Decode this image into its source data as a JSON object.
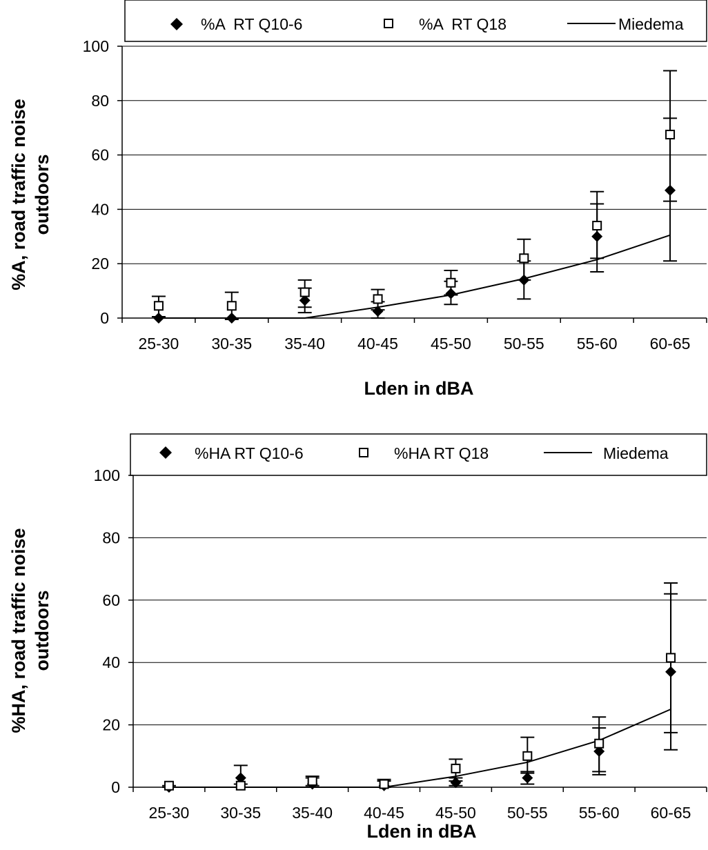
{
  "colors": {
    "background": "#ffffff",
    "ink": "#000000"
  },
  "chart_data": [
    {
      "type": "line",
      "xlabel": "Lden in dBA",
      "ylabel_line1": "%A, road traffic noise",
      "ylabel_line2": "outdoors",
      "ylim": [
        0,
        100
      ],
      "yticks": [
        "0",
        "20",
        "40",
        "60",
        "80",
        "100"
      ],
      "categories": [
        "25-30",
        "30-35",
        "35-40",
        "40-45",
        "45-50",
        "50-55",
        "55-60",
        "60-65"
      ],
      "legend_position": "top",
      "grid": "horizontal",
      "series": [
        {
          "name": "%A  RT Q10-6",
          "marker": "filled-diamond",
          "values": [
            0,
            0,
            6.5,
            2.5,
            9,
            14,
            30,
            47
          ],
          "err_low": [
            0,
            0,
            2,
            0,
            5,
            7,
            17,
            21
          ],
          "err_high": [
            0,
            0,
            11,
            6,
            13.5,
            21,
            42,
            73.5
          ]
        },
        {
          "name": "%A  RT Q18",
          "marker": "open-square",
          "values": [
            4.5,
            4.5,
            9.5,
            7,
            13,
            22,
            34,
            67.5
          ],
          "err_low": [
            0.5,
            -0.5,
            4,
            3,
            8.5,
            14,
            22,
            43
          ],
          "err_high": [
            8,
            9.5,
            14,
            10.5,
            17.5,
            29,
            46.5,
            91
          ]
        },
        {
          "name": "Miedema",
          "marker": "line",
          "values": [
            0,
            0,
            0,
            4,
            8.5,
            14.5,
            21.5,
            30.5
          ]
        }
      ]
    },
    {
      "type": "line",
      "xlabel": "Lden in dBA",
      "ylabel_line1": "%HA, road traffic noise",
      "ylabel_line2": "outdoors",
      "ylim": [
        0,
        100
      ],
      "yticks": [
        "0",
        "20",
        "40",
        "60",
        "80",
        "100"
      ],
      "categories": [
        "25-30",
        "30-35",
        "35-40",
        "40-45",
        "45-50",
        "50-55",
        "55-60",
        "60-65"
      ],
      "legend_position": "top",
      "grid": "horizontal",
      "series": [
        {
          "name": "%HA RT Q10-6",
          "marker": "filled-diamond",
          "values": [
            0,
            3,
            1,
            0.5,
            1.5,
            3,
            11.5,
            37
          ],
          "err_low": [
            0,
            0,
            0,
            0,
            0.5,
            1,
            4,
            12
          ],
          "err_high": [
            0,
            7,
            3,
            2,
            3,
            5,
            19,
            62
          ]
        },
        {
          "name": "%HA RT Q18",
          "marker": "open-square",
          "values": [
            0.5,
            0.5,
            2,
            1,
            6,
            10,
            14,
            41.5
          ],
          "err_low": [
            0,
            0,
            0.5,
            0,
            2,
            4.5,
            5,
            17.5
          ],
          "err_high": [
            0.5,
            1,
            3.5,
            2.5,
            9,
            16,
            22.5,
            65.5
          ]
        },
        {
          "name": "Miedema",
          "marker": "line",
          "values": [
            0,
            0,
            0,
            0,
            3.5,
            8,
            15,
            25
          ]
        }
      ]
    }
  ]
}
